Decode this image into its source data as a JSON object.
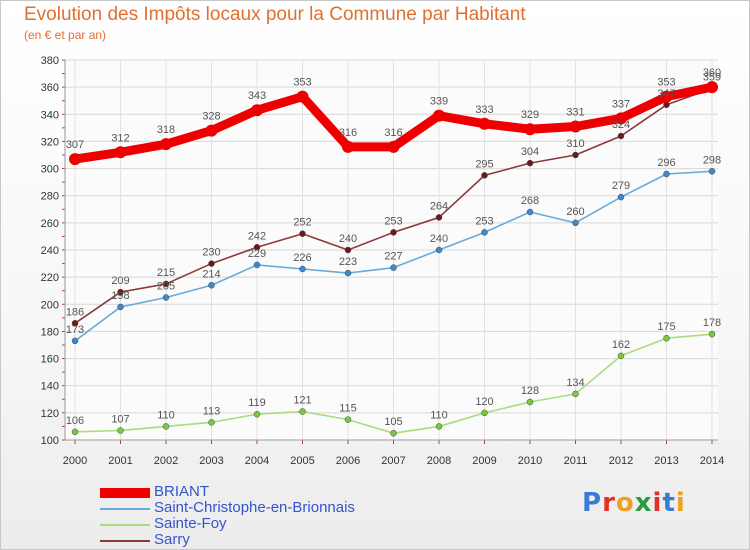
{
  "header": {
    "title": "Evolution des Impôts locaux pour la Commune par Habitant",
    "subtitle": "(en € et par an)"
  },
  "logo": {
    "text": "Proxiti",
    "letter_colors": [
      "#3a7bd5",
      "#e0302a",
      "#f0a020",
      "#2a9a3a",
      "#e0302a",
      "#3a7bd5",
      "#f0a020"
    ]
  },
  "chart_data": {
    "type": "line",
    "title": "Evolution des Impôts locaux pour la Commune par Habitant",
    "ylabel": "(en € et par an)",
    "xlabel": "",
    "ylim": [
      100,
      380
    ],
    "yticks": [
      100,
      120,
      140,
      160,
      180,
      200,
      220,
      240,
      260,
      280,
      300,
      320,
      340,
      360,
      380
    ],
    "grid": true,
    "legend_position": "bottom-left",
    "categories": [
      "2000",
      "2001",
      "2002",
      "2003",
      "2004",
      "2005",
      "2006",
      "2007",
      "2008",
      "2009",
      "2010",
      "2011",
      "2012",
      "2013",
      "2014"
    ],
    "series": [
      {
        "name": "BRIANT",
        "color": "#ee0000",
        "point_color": "#ee0000",
        "label_color": "#555555",
        "values": [
          307,
          312,
          318,
          328,
          343,
          353,
          316,
          316,
          339,
          333,
          329,
          331,
          337,
          353,
          360
        ],
        "bold": true
      },
      {
        "name": "Saint-Christophe-en-Brionnais",
        "color": "#6aaad8",
        "point_color": "#3a8ad0",
        "label_color": "#555555",
        "values": [
          173,
          198,
          205,
          214,
          229,
          226,
          223,
          227,
          240,
          253,
          268,
          260,
          279,
          296,
          298
        ],
        "bold": false
      },
      {
        "name": "Sainte-Foy",
        "color": "#a8dc80",
        "point_color": "#78c840",
        "label_color": "#555555",
        "values": [
          106,
          107,
          110,
          113,
          119,
          121,
          115,
          105,
          110,
          120,
          128,
          134,
          162,
          175,
          178
        ],
        "bold": false
      },
      {
        "name": "Sarry",
        "color": "#8a3a3a",
        "point_color": "#6a1a1a",
        "label_color": "#555555",
        "values": [
          186,
          209,
          215,
          230,
          242,
          252,
          240,
          253,
          264,
          295,
          304,
          310,
          324,
          347,
          359
        ],
        "bold": false
      }
    ]
  }
}
